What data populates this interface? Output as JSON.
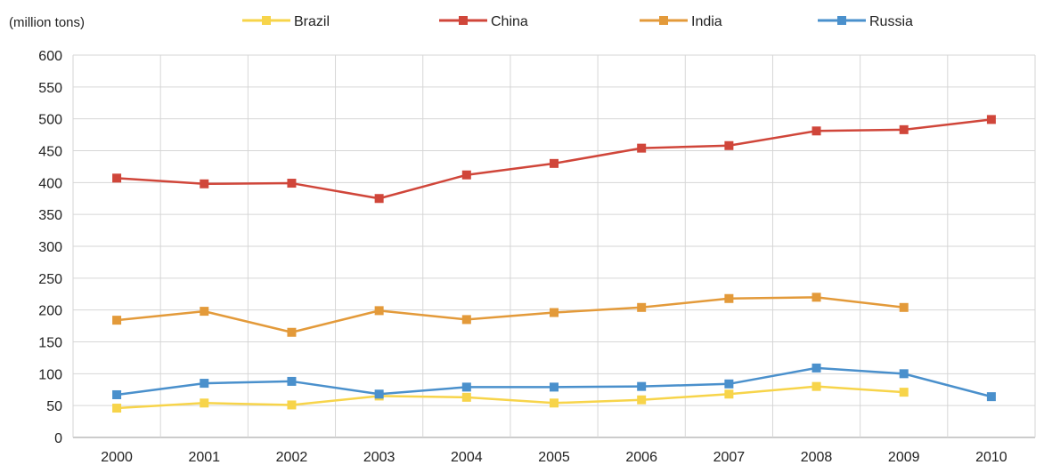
{
  "chart_data": {
    "type": "line",
    "unit_label": "(million tons)",
    "title": "",
    "xlabel": "",
    "ylabel": "",
    "categories": [
      "2000",
      "2001",
      "2002",
      "2003",
      "2004",
      "2005",
      "2006",
      "2007",
      "2008",
      "2009",
      "2010"
    ],
    "y_ticks": [
      0,
      50,
      100,
      150,
      200,
      250,
      300,
      350,
      400,
      450,
      500,
      550,
      600
    ],
    "ylim": [
      0,
      600
    ],
    "grid": true,
    "legend_position": "top",
    "series": [
      {
        "name": "Brazil",
        "color": "#f7d44a",
        "values": [
          46,
          54,
          51,
          65,
          63,
          54,
          59,
          68,
          80,
          71,
          null
        ]
      },
      {
        "name": "China",
        "color": "#d0463a",
        "values": [
          407,
          398,
          399,
          375,
          412,
          430,
          454,
          458,
          481,
          483,
          499
        ]
      },
      {
        "name": "India",
        "color": "#e39a3a",
        "values": [
          184,
          198,
          165,
          199,
          185,
          196,
          204,
          218,
          220,
          204,
          null
        ]
      },
      {
        "name": "Russia",
        "color": "#4a90cc",
        "values": [
          67,
          85,
          88,
          68,
          79,
          79,
          80,
          84,
          109,
          100,
          64
        ]
      }
    ]
  }
}
